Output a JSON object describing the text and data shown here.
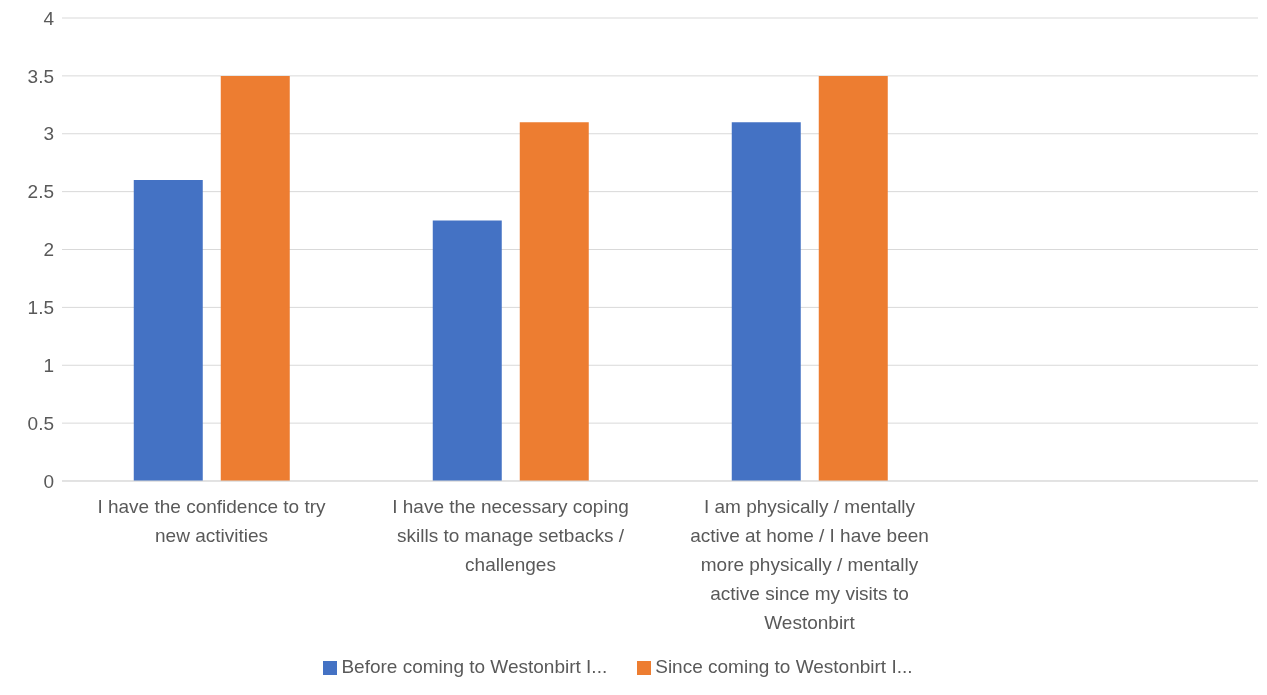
{
  "chart_data": {
    "type": "bar",
    "categories": [
      "I have the confidence to try new activities",
      "I have the necessary coping skills to manage setbacks / challenges",
      "I am physically / mentally active at home / I have been more physically / mentally active since my visits to Westonbirt",
      null
    ],
    "series": [
      {
        "name": "Before coming to Westonbirt I...",
        "color": "#4472c4",
        "values": [
          2.6,
          2.25,
          3.1,
          null
        ]
      },
      {
        "name": "Since coming to Westonbirt I...",
        "color": "#ed7d31",
        "values": [
          3.5,
          3.1,
          3.5,
          null
        ]
      }
    ],
    "ylim": [
      0,
      4
    ],
    "yticks": [
      0,
      0.5,
      1,
      1.5,
      2,
      2.5,
      3,
      3.5,
      4
    ],
    "grid": "y",
    "legend": "bottom"
  }
}
